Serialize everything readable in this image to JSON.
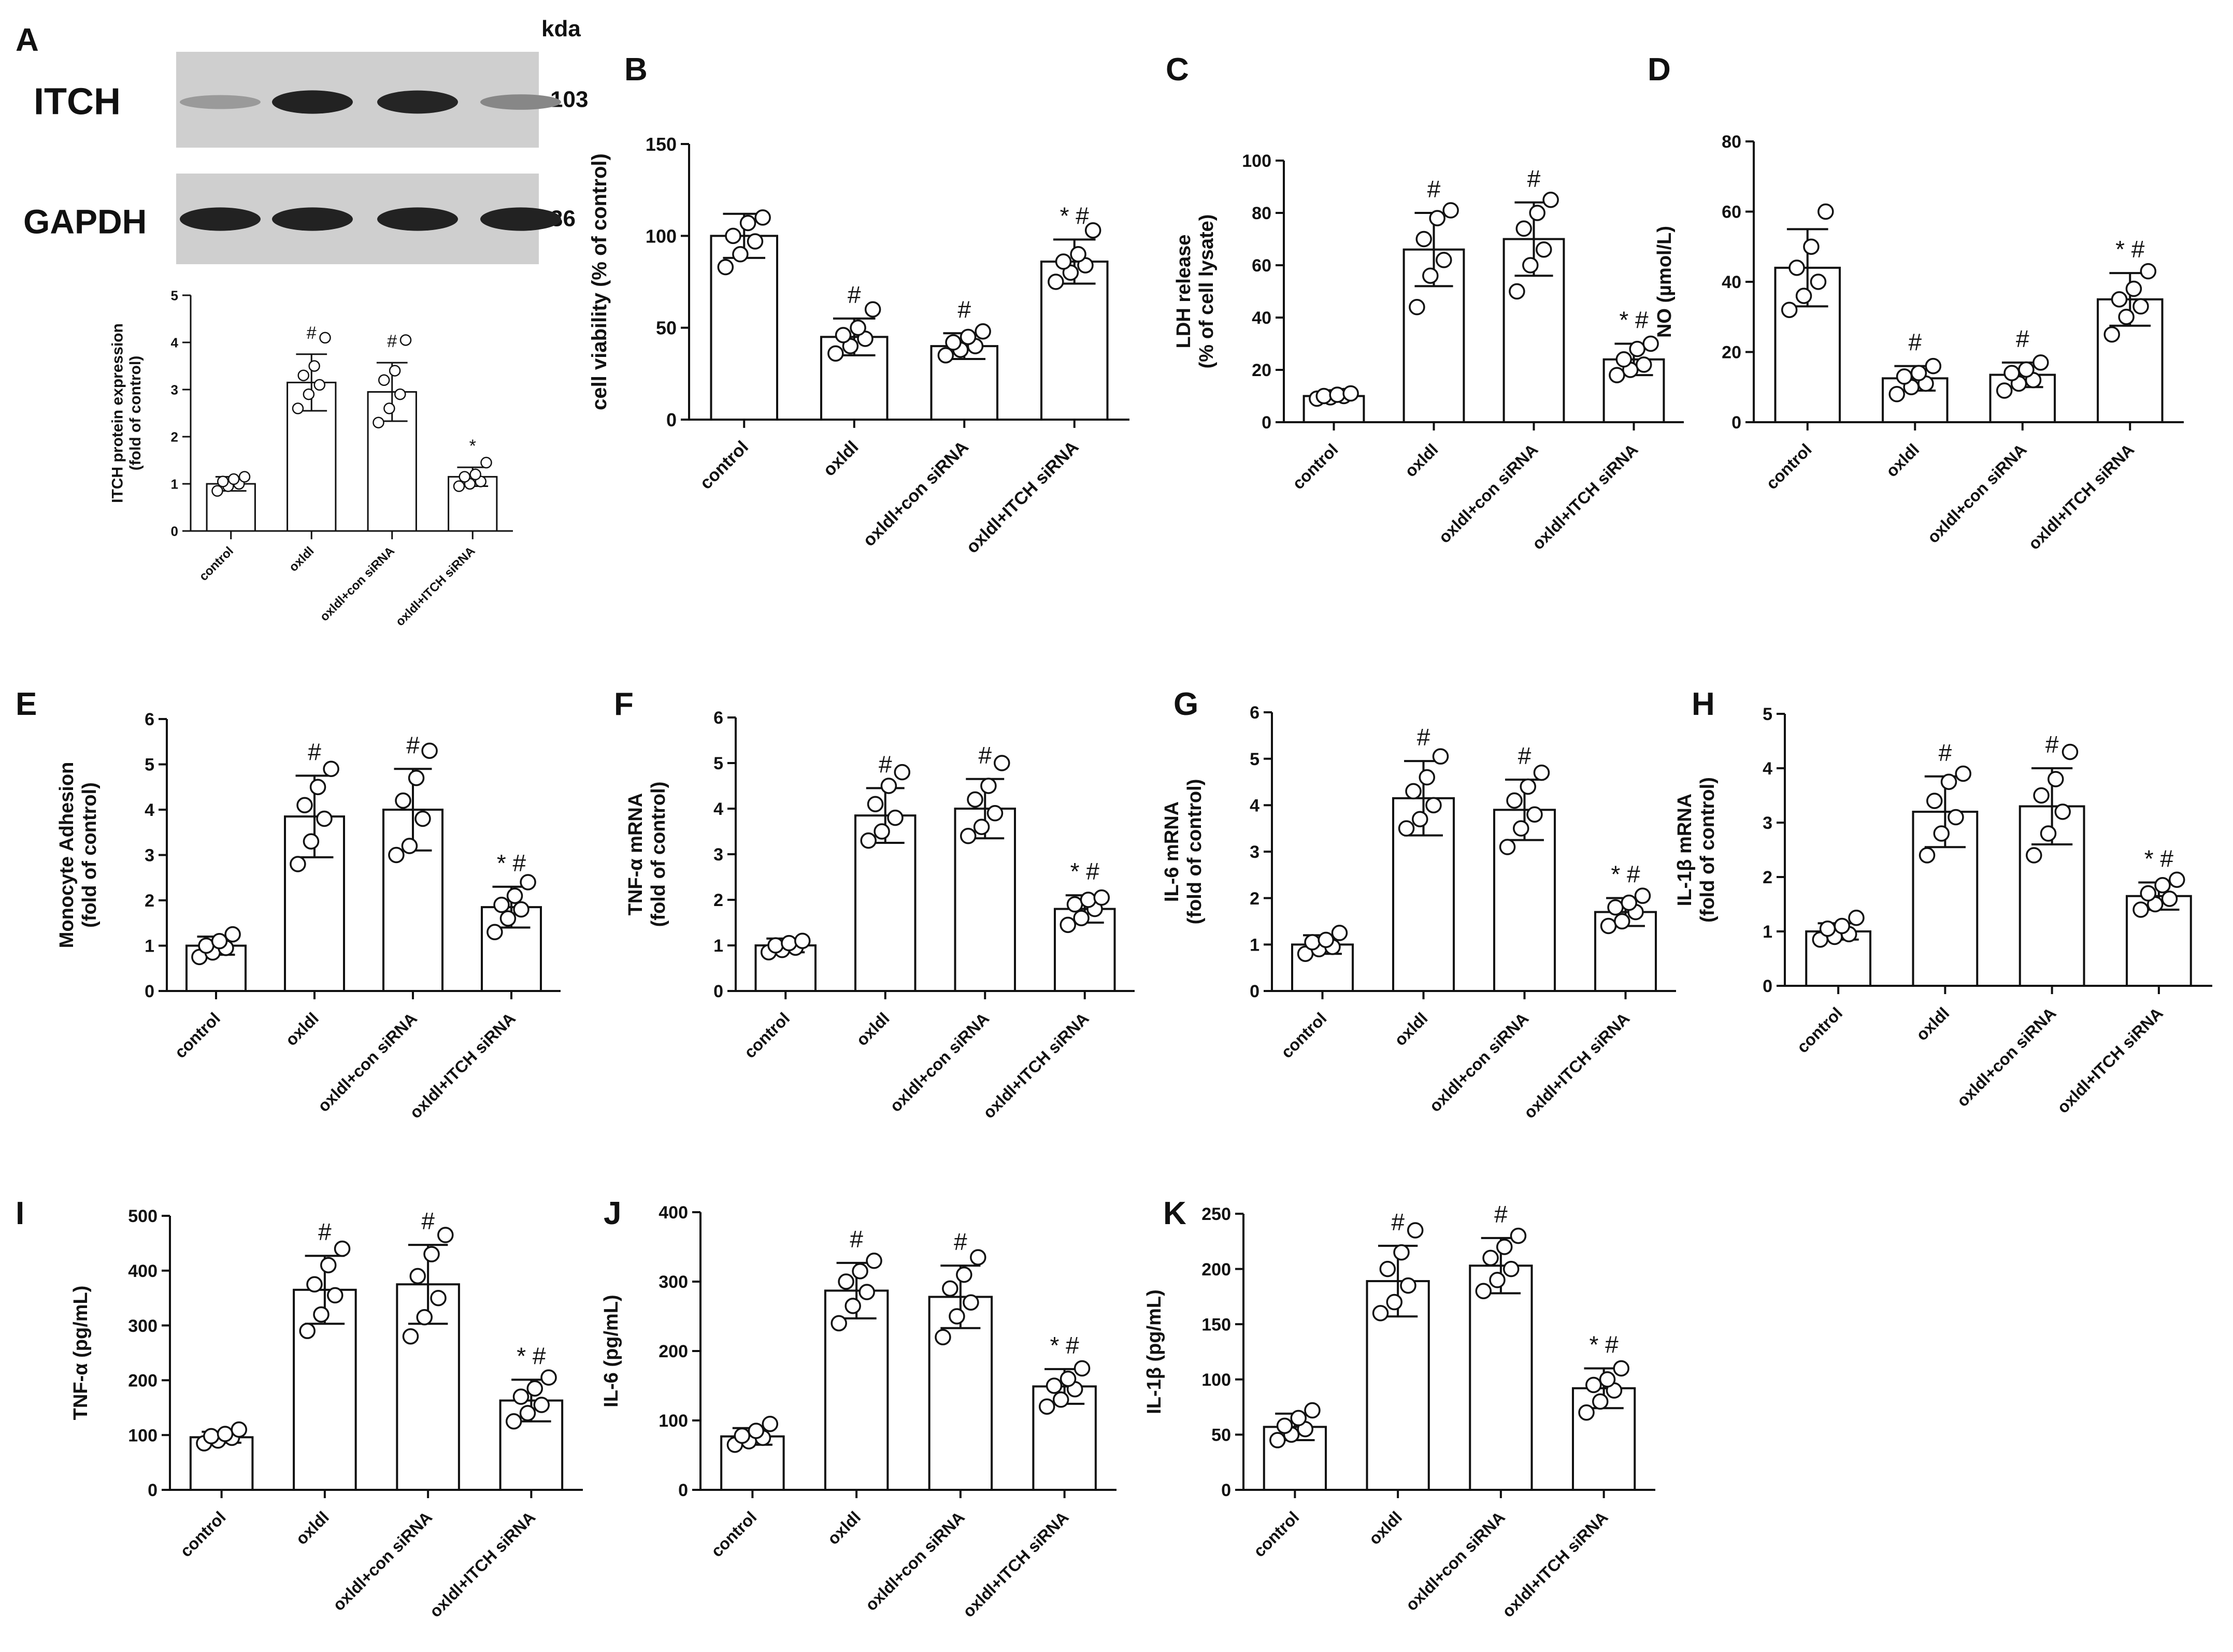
{
  "blot": {
    "panel_letter": "A",
    "unit_label": "kda",
    "bands": [
      {
        "name": "ITCH",
        "kda": "103",
        "intensities": [
          0.25,
          0.9,
          0.88,
          0.35
        ]
      },
      {
        "name": "GAPDH",
        "kda": "36",
        "intensities": [
          0.9,
          0.9,
          0.9,
          0.9
        ]
      }
    ]
  },
  "chart_data": [
    {
      "panel": "A",
      "type": "bar",
      "ylabel": "ITCH protein expression\n(fold of control)",
      "ylim": [
        0,
        5
      ],
      "yticks": [
        0,
        1,
        2,
        3,
        4,
        5
      ],
      "categories": [
        "control",
        "oxldl",
        "oxldl+con siRNA",
        "oxldl+ITCH siRNA"
      ],
      "values": [
        1.0,
        3.15,
        2.95,
        1.15
      ],
      "sd": [
        0.15,
        0.6,
        0.62,
        0.2
      ],
      "points": [
        [
          0.85,
          0.95,
          1.0,
          1.05,
          1.1,
          1.15
        ],
        [
          2.6,
          2.9,
          3.1,
          3.3,
          3.5,
          4.1
        ],
        [
          2.3,
          2.6,
          2.9,
          3.2,
          3.4,
          4.05
        ],
        [
          0.95,
          1.0,
          1.05,
          1.15,
          1.2,
          1.45
        ]
      ],
      "annotations": [
        "",
        "#",
        "#",
        "*"
      ]
    },
    {
      "panel": "B",
      "type": "bar",
      "ylabel": "cell viability (% of control)",
      "ylim": [
        0,
        150
      ],
      "yticks": [
        0,
        50,
        100,
        150
      ],
      "categories": [
        "control",
        "oxldl",
        "oxldl+con siRNA",
        "oxldl+ITCH siRNA"
      ],
      "values": [
        100,
        45,
        40,
        86
      ],
      "sd": [
        12,
        10,
        7,
        12
      ],
      "points": [
        [
          83,
          90,
          97,
          100,
          107,
          110
        ],
        [
          36,
          40,
          44,
          46,
          50,
          60
        ],
        [
          35,
          38,
          40,
          42,
          45,
          48
        ],
        [
          75,
          80,
          84,
          86,
          90,
          103
        ]
      ],
      "annotations": [
        "",
        "#",
        "#",
        "* #"
      ]
    },
    {
      "panel": "C",
      "type": "bar",
      "ylabel": "LDH release\n(% of cell lysate)",
      "ylim": [
        0,
        100
      ],
      "yticks": [
        0,
        20,
        40,
        60,
        80,
        100
      ],
      "categories": [
        "control",
        "oxldl",
        "oxldl+con siRNA",
        "oxldl+ITCH siRNA"
      ],
      "values": [
        10,
        66,
        70,
        24
      ],
      "sd": [
        1.5,
        14,
        14,
        6
      ],
      "points": [
        [
          9,
          9.5,
          10,
          10,
          10.5,
          11
        ],
        [
          44,
          56,
          62,
          70,
          78,
          81
        ],
        [
          50,
          60,
          66,
          74,
          80,
          85
        ],
        [
          18,
          20,
          22,
          24,
          28,
          30
        ]
      ],
      "annotations": [
        "",
        "#",
        "#",
        "* #"
      ]
    },
    {
      "panel": "D",
      "type": "bar",
      "ylabel": "NO (µmol/L)",
      "ylim": [
        0,
        80
      ],
      "yticks": [
        0,
        20,
        40,
        60,
        80
      ],
      "categories": [
        "control",
        "oxldl",
        "oxldl+con siRNA",
        "oxldl+ITCH siRNA"
      ],
      "values": [
        44,
        12.5,
        13.5,
        35
      ],
      "sd": [
        11,
        3.5,
        3.5,
        7.5
      ],
      "points": [
        [
          32,
          36,
          40,
          44,
          50,
          60
        ],
        [
          8,
          10,
          11,
          13,
          14,
          16
        ],
        [
          9,
          11,
          12,
          14,
          15,
          17
        ],
        [
          25,
          30,
          33,
          35,
          38,
          43
        ]
      ],
      "annotations": [
        "",
        "#",
        "#",
        "* #"
      ]
    },
    {
      "panel": "E",
      "type": "bar",
      "ylabel": "Monocyte Adhesion\n(fold of control)",
      "ylim": [
        0,
        6
      ],
      "yticks": [
        0,
        1,
        2,
        3,
        4,
        5,
        6
      ],
      "categories": [
        "control",
        "oxldl",
        "oxldl+con siRNA",
        "oxldl+ITCH siRNA"
      ],
      "values": [
        1.0,
        3.85,
        4.0,
        1.85
      ],
      "sd": [
        0.2,
        0.9,
        0.9,
        0.45
      ],
      "points": [
        [
          0.75,
          0.85,
          0.95,
          1.0,
          1.1,
          1.25
        ],
        [
          2.8,
          3.3,
          3.8,
          4.1,
          4.5,
          4.9
        ],
        [
          3.0,
          3.2,
          3.8,
          4.2,
          4.7,
          5.3
        ],
        [
          1.3,
          1.6,
          1.8,
          1.9,
          2.1,
          2.4
        ]
      ],
      "annotations": [
        "",
        "#",
        "#",
        "* #"
      ]
    },
    {
      "panel": "F",
      "type": "bar",
      "ylabel": "TNF-α mRNA\n(fold of control)",
      "ylim": [
        0,
        6
      ],
      "yticks": [
        0,
        1,
        2,
        3,
        4,
        5,
        6
      ],
      "categories": [
        "control",
        "oxldl",
        "oxldl+con siRNA",
        "oxldl+ITCH siRNA"
      ],
      "values": [
        1.0,
        3.85,
        4.0,
        1.8
      ],
      "sd": [
        0.15,
        0.6,
        0.65,
        0.3
      ],
      "points": [
        [
          0.85,
          0.9,
          0.95,
          1.0,
          1.05,
          1.1
        ],
        [
          3.3,
          3.5,
          3.8,
          4.1,
          4.5,
          4.8
        ],
        [
          3.4,
          3.6,
          3.9,
          4.2,
          4.5,
          5.0
        ],
        [
          1.45,
          1.6,
          1.8,
          1.9,
          2.0,
          2.05
        ]
      ],
      "annotations": [
        "",
        "#",
        "#",
        "* #"
      ]
    },
    {
      "panel": "G",
      "type": "bar",
      "ylabel": "IL-6 mRNA\n(fold of control)",
      "ylim": [
        0,
        6
      ],
      "yticks": [
        0,
        1,
        2,
        3,
        4,
        5,
        6
      ],
      "categories": [
        "control",
        "oxldl",
        "oxldl+con siRNA",
        "oxldl+ITCH siRNA"
      ],
      "values": [
        1.0,
        4.15,
        3.9,
        1.7
      ],
      "sd": [
        0.2,
        0.8,
        0.65,
        0.3
      ],
      "points": [
        [
          0.8,
          0.9,
          0.95,
          1.05,
          1.1,
          1.25
        ],
        [
          3.5,
          3.7,
          4.0,
          4.3,
          4.6,
          5.05
        ],
        [
          3.1,
          3.5,
          3.8,
          4.1,
          4.4,
          4.7
        ],
        [
          1.4,
          1.5,
          1.7,
          1.8,
          1.9,
          2.05
        ]
      ],
      "annotations": [
        "",
        "#",
        "#",
        "* #"
      ]
    },
    {
      "panel": "H",
      "type": "bar",
      "ylabel": "IL-1β mRNA\n(fold of control)",
      "ylim": [
        0,
        5
      ],
      "yticks": [
        0,
        1,
        2,
        3,
        4,
        5
      ],
      "categories": [
        "control",
        "oxldl",
        "oxldl+con siRNA",
        "oxldl+ITCH siRNA"
      ],
      "values": [
        1.0,
        3.2,
        3.3,
        1.65
      ],
      "sd": [
        0.15,
        0.65,
        0.7,
        0.25
      ],
      "points": [
        [
          0.85,
          0.9,
          0.95,
          1.05,
          1.1,
          1.25
        ],
        [
          2.4,
          2.8,
          3.1,
          3.4,
          3.75,
          3.9
        ],
        [
          2.4,
          2.8,
          3.2,
          3.5,
          3.8,
          4.3
        ],
        [
          1.4,
          1.5,
          1.6,
          1.7,
          1.85,
          1.95
        ]
      ],
      "annotations": [
        "",
        "#",
        "#",
        "* #"
      ]
    },
    {
      "panel": "I",
      "type": "bar",
      "ylabel": "TNF-α (pg/mL)",
      "ylim": [
        0,
        500
      ],
      "yticks": [
        0,
        100,
        200,
        300,
        400,
        500
      ],
      "categories": [
        "control",
        "oxldl",
        "oxldl+con siRNA",
        "oxldl+ITCH siRNA"
      ],
      "values": [
        96,
        365,
        375,
        163
      ],
      "sd": [
        10,
        62,
        72,
        38
      ],
      "points": [
        [
          85,
          90,
          95,
          98,
          102,
          110
        ],
        [
          290,
          320,
          355,
          375,
          410,
          440
        ],
        [
          280,
          315,
          350,
          390,
          430,
          465
        ],
        [
          125,
          140,
          155,
          170,
          185,
          205
        ]
      ],
      "annotations": [
        "",
        "#",
        "#",
        "* #"
      ]
    },
    {
      "panel": "J",
      "type": "bar",
      "ylabel": "IL-6 (pg/mL)",
      "ylim": [
        0,
        400
      ],
      "yticks": [
        0,
        100,
        200,
        300,
        400
      ],
      "categories": [
        "control",
        "oxldl",
        "oxldl+con siRNA",
        "oxldl+ITCH siRNA"
      ],
      "values": [
        77,
        287,
        278,
        149
      ],
      "sd": [
        12,
        40,
        45,
        25
      ],
      "points": [
        [
          65,
          70,
          75,
          78,
          85,
          95
        ],
        [
          240,
          265,
          285,
          300,
          315,
          330
        ],
        [
          220,
          250,
          270,
          290,
          310,
          335
        ],
        [
          120,
          130,
          145,
          150,
          160,
          175
        ]
      ],
      "annotations": [
        "",
        "#",
        "#",
        "* #"
      ]
    },
    {
      "panel": "K",
      "type": "bar",
      "ylabel": "IL-1β (pg/mL)",
      "ylim": [
        0,
        250
      ],
      "yticks": [
        0,
        50,
        100,
        150,
        200,
        250
      ],
      "categories": [
        "control",
        "oxldl",
        "oxldl+con siRNA",
        "oxldl+ITCH siRNA"
      ],
      "values": [
        57,
        189,
        203,
        92
      ],
      "sd": [
        12,
        32,
        25,
        18
      ],
      "points": [
        [
          45,
          50,
          55,
          58,
          65,
          72
        ],
        [
          160,
          170,
          185,
          200,
          215,
          235
        ],
        [
          180,
          190,
          200,
          210,
          220,
          230
        ],
        [
          70,
          80,
          90,
          95,
          100,
          110
        ]
      ],
      "annotations": [
        "",
        "#",
        "#",
        "* #"
      ]
    }
  ]
}
